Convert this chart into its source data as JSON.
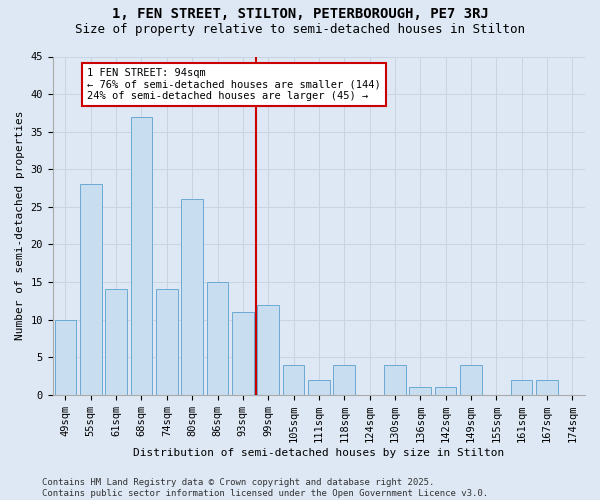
{
  "title1": "1, FEN STREET, STILTON, PETERBOROUGH, PE7 3RJ",
  "title2": "Size of property relative to semi-detached houses in Stilton",
  "xlabel": "Distribution of semi-detached houses by size in Stilton",
  "ylabel": "Number of semi-detached properties",
  "categories": [
    "49sqm",
    "55sqm",
    "61sqm",
    "68sqm",
    "74sqm",
    "80sqm",
    "86sqm",
    "93sqm",
    "99sqm",
    "105sqm",
    "111sqm",
    "118sqm",
    "124sqm",
    "130sqm",
    "136sqm",
    "142sqm",
    "149sqm",
    "155sqm",
    "161sqm",
    "167sqm",
    "174sqm"
  ],
  "values": [
    10,
    28,
    14,
    37,
    14,
    26,
    15,
    11,
    12,
    4,
    2,
    4,
    0,
    4,
    1,
    1,
    4,
    0,
    2,
    2,
    0
  ],
  "bar_color": "#c9ddf0",
  "bar_edge_color": "#6aaad4",
  "vline_color": "#cc0000",
  "annotation_title": "1 FEN STREET: 94sqm",
  "annotation_line2": "← 76% of semi-detached houses are smaller (144)",
  "annotation_line3": "24% of semi-detached houses are larger (45) →",
  "annotation_box_color": "#cc0000",
  "annotation_bg": "#ffffff",
  "ylim": [
    0,
    45
  ],
  "yticks": [
    0,
    5,
    10,
    15,
    20,
    25,
    30,
    35,
    40,
    45
  ],
  "grid_color": "#c8d4e3",
  "bg_color": "#dde8f4",
  "footer": "Contains HM Land Registry data © Crown copyright and database right 2025.\nContains public sector information licensed under the Open Government Licence v3.0.",
  "title_fontsize": 10,
  "subtitle_fontsize": 9,
  "axis_label_fontsize": 8,
  "tick_fontsize": 7.5,
  "annotation_fontsize": 7.5,
  "footer_fontsize": 6.5
}
